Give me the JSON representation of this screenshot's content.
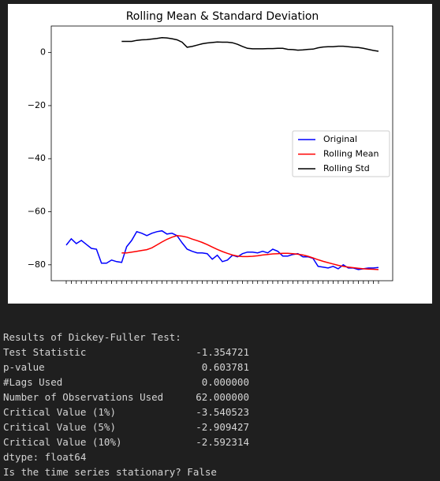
{
  "chart_data": {
    "type": "line",
    "title": "Rolling Mean & Standard Deviation",
    "categories": [
      null,
      null,
      null,
      null,
      null,
      null,
      null,
      null,
      null,
      null,
      null,
      null,
      null,
      null,
      null,
      null,
      null,
      null,
      null,
      null,
      null,
      null,
      null,
      null,
      null,
      null,
      null,
      null,
      null,
      null,
      null,
      null,
      null,
      null,
      null,
      null,
      null,
      null,
      null,
      null,
      null,
      null,
      null,
      null,
      null,
      null,
      null,
      null,
      null,
      null,
      null,
      null,
      null,
      null,
      null,
      null,
      null,
      null,
      null,
      null,
      null,
      null,
      null
    ],
    "series": [
      {
        "name": "Original",
        "color": "#0000ff",
        "values": [
          -72.6,
          -70.2,
          -72.0,
          -70.8,
          -72.3,
          -73.8,
          -74.1,
          -79.4,
          -79.4,
          -78.2,
          -78.8,
          -79.1,
          -73.2,
          -70.8,
          -67.5,
          -68.1,
          -69.0,
          -68.1,
          -67.5,
          -67.2,
          -68.4,
          -68.1,
          -69.0,
          -71.7,
          -74.1,
          -74.9,
          -75.5,
          -75.5,
          -75.8,
          -77.9,
          -76.4,
          -78.8,
          -78.2,
          -76.4,
          -77.0,
          -75.8,
          -75.2,
          -75.2,
          -75.5,
          -74.9,
          -75.5,
          -74.1,
          -74.9,
          -76.7,
          -76.7,
          -76.1,
          -75.8,
          -77.0,
          -77.0,
          -77.6,
          -80.6,
          -80.9,
          -81.2,
          -80.6,
          -81.5,
          -80.0,
          -81.2,
          -81.2,
          -81.8,
          -81.5,
          -81.2,
          -81.2,
          -81.0
        ]
      },
      {
        "name": "Rolling Mean",
        "color": "#ff0000",
        "values": [
          null,
          null,
          null,
          null,
          null,
          null,
          null,
          null,
          null,
          null,
          null,
          -75.5,
          -75.5,
          -75.2,
          -74.9,
          -74.6,
          -74.3,
          -73.6,
          -72.5,
          -71.4,
          -70.4,
          -69.6,
          -69.0,
          -69.2,
          -69.6,
          -70.3,
          -70.9,
          -71.6,
          -72.4,
          -73.3,
          -74.2,
          -75.0,
          -75.7,
          -76.3,
          -76.7,
          -76.9,
          -76.9,
          -76.8,
          -76.6,
          -76.3,
          -76.1,
          -75.9,
          -75.8,
          -75.7,
          -75.7,
          -75.8,
          -76.0,
          -76.3,
          -76.8,
          -77.4,
          -78.1,
          -78.7,
          -79.2,
          -79.7,
          -80.2,
          -80.6,
          -80.9,
          -81.1,
          -81.3,
          -81.5,
          -81.6,
          -81.7,
          -81.8
        ]
      },
      {
        "name": "Rolling Std",
        "color": "#000000",
        "values": [
          null,
          null,
          null,
          null,
          null,
          null,
          null,
          null,
          null,
          null,
          null,
          4.2,
          4.2,
          4.2,
          4.6,
          4.8,
          4.9,
          5.1,
          5.3,
          5.6,
          5.5,
          5.2,
          4.8,
          3.9,
          2.0,
          2.3,
          2.8,
          3.3,
          3.6,
          3.8,
          4.0,
          3.9,
          3.9,
          3.7,
          3.1,
          2.3,
          1.6,
          1.4,
          1.4,
          1.4,
          1.5,
          1.5,
          1.6,
          1.6,
          1.2,
          1.1,
          0.9,
          1.0,
          1.2,
          1.3,
          1.8,
          2.1,
          2.2,
          2.2,
          2.4,
          2.4,
          2.2,
          2.0,
          1.9,
          1.6,
          1.2,
          0.8,
          0.5
        ]
      }
    ],
    "ylim": [
      -86,
      10
    ],
    "yticks": [
      0,
      {
        "value": -20,
        "label": "−20"
      },
      {
        "value": -40,
        "label": "−40"
      },
      {
        "value": -60,
        "label": "−60"
      },
      {
        "value": -80,
        "label": "−80"
      }
    ],
    "legend": "center right"
  },
  "output": {
    "heading": "Results of Dickey-Fuller Test:",
    "rows": [
      [
        "Test Statistic",
        "-1.354721"
      ],
      [
        "p-value",
        "0.603781"
      ],
      [
        "#Lags Used",
        "0.000000"
      ],
      [
        "Number of Observations Used",
        "62.000000"
      ],
      [
        "Critical Value (1%)",
        "-3.540523"
      ],
      [
        "Critical Value (5%)",
        "-2.909427"
      ],
      [
        "Critical Value (10%)",
        "-2.592314"
      ]
    ],
    "dtype": "dtype: float64",
    "conclusion": "Is the time series stationary? False"
  }
}
